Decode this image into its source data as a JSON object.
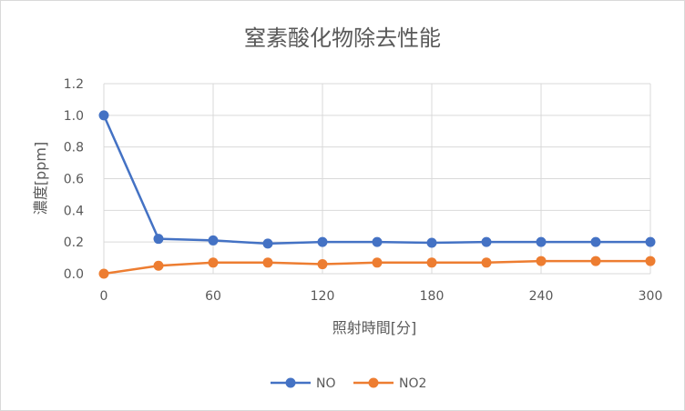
{
  "chart_data": {
    "type": "line",
    "title": "窒素酸化物除去性能",
    "xlabel": "照射時間[分]",
    "ylabel": "濃度[ppm]",
    "x": [
      0,
      30,
      60,
      90,
      120,
      150,
      180,
      210,
      240,
      270,
      300
    ],
    "x_ticks": [
      "0",
      "60",
      "120",
      "180",
      "240",
      "300"
    ],
    "y_ticks": [
      "0.0",
      "0.2",
      "0.4",
      "0.6",
      "0.8",
      "1.0",
      "1.2"
    ],
    "xlim": [
      0,
      300
    ],
    "ylim": [
      0,
      1.2
    ],
    "grid": true,
    "legend_position": "bottom",
    "series": [
      {
        "name": "NO",
        "color": "#4472c4",
        "values": [
          1.0,
          0.22,
          0.21,
          0.19,
          0.2,
          0.2,
          0.195,
          0.2,
          0.2,
          0.2,
          0.2
        ]
      },
      {
        "name": "NO2",
        "color": "#ed7d31",
        "values": [
          0.0,
          0.05,
          0.07,
          0.07,
          0.06,
          0.07,
          0.07,
          0.07,
          0.08,
          0.08,
          0.08
        ]
      }
    ]
  }
}
